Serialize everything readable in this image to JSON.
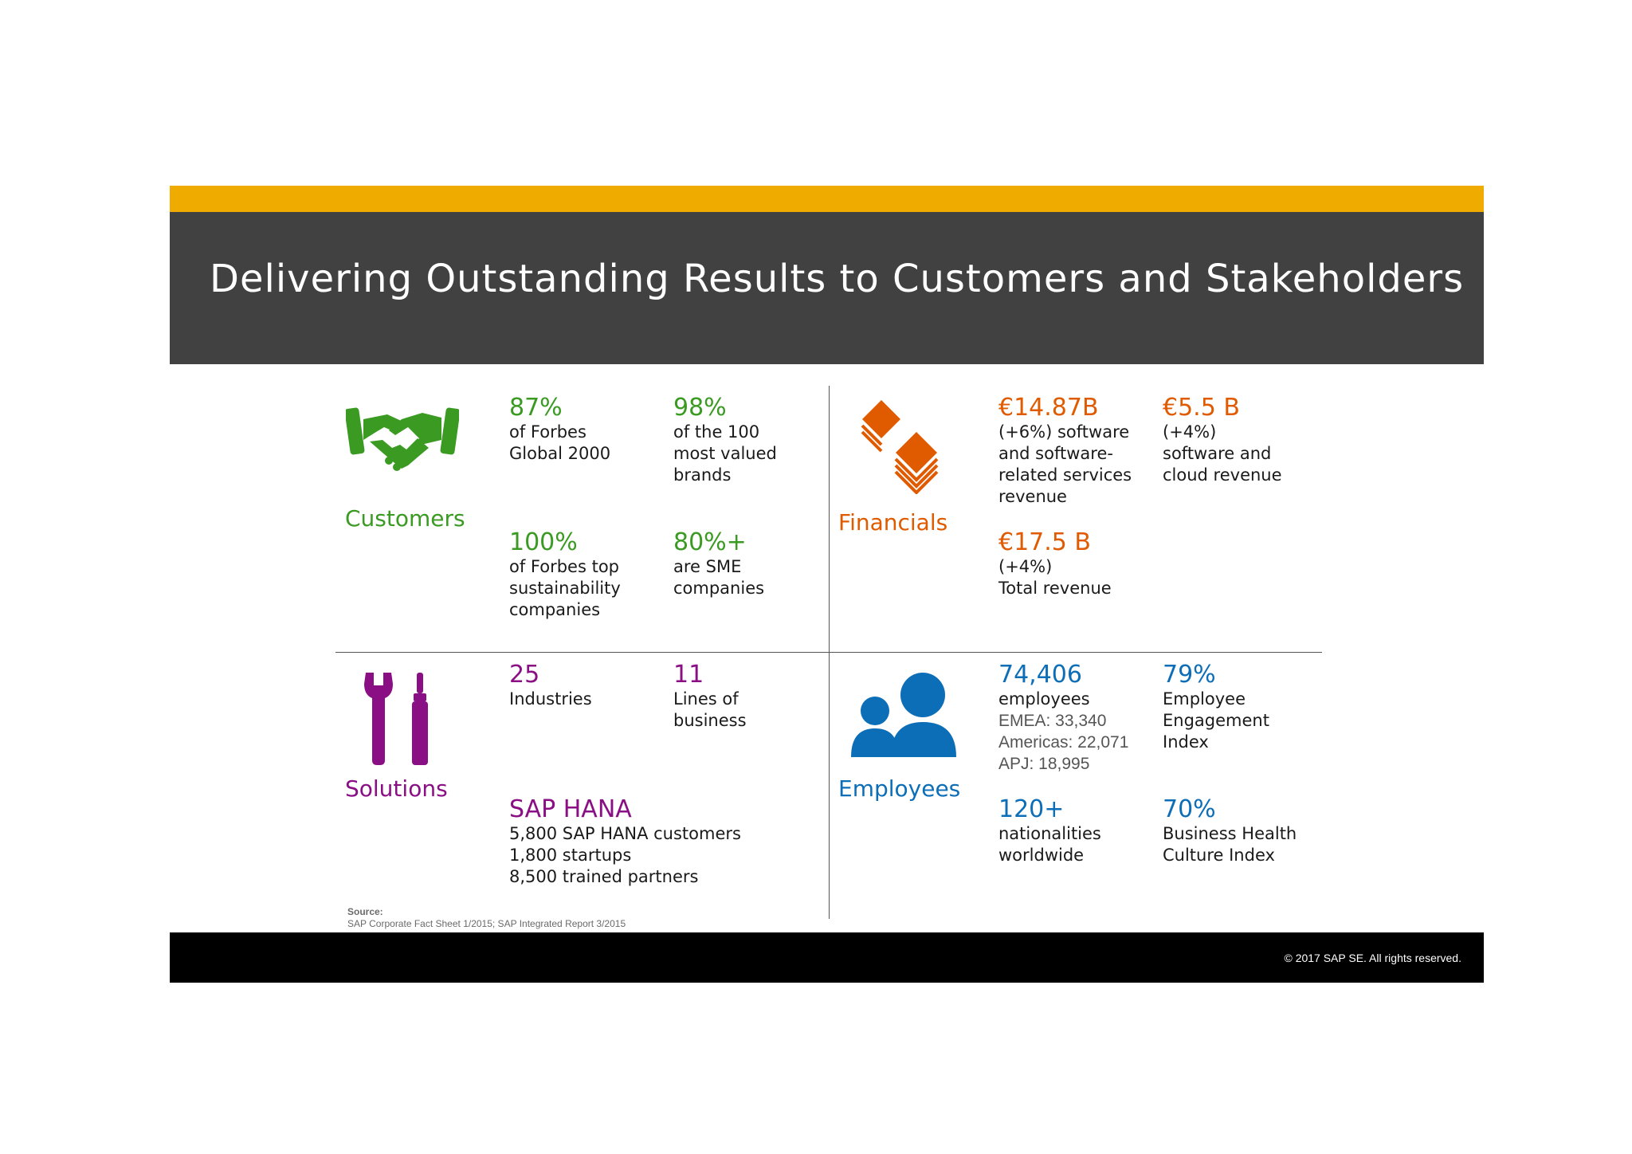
{
  "header": {
    "title": "Delivering Outstanding Results to Customers and Stakeholders"
  },
  "footer": {
    "copyright": "© 2017 SAP SE. All rights reserved."
  },
  "colors": {
    "gold": "#F0AB00",
    "title_bg": "#414141",
    "green": "#3A9A22",
    "orange": "#E05A00",
    "purple": "#8B0F84",
    "blue": "#0D6EB8"
  },
  "customers": {
    "label": "Customers",
    "icon": "handshake-icon",
    "stats": [
      {
        "value": "87%",
        "desc": "of Forbes\nGlobal 2000"
      },
      {
        "value": "98%",
        "desc": "of the 100\nmost valued\nbrands"
      },
      {
        "value": "100%",
        "desc": "of Forbes top\nsustainability\ncompanies"
      },
      {
        "value": "80%+",
        "desc": "are SME\ncompanies"
      }
    ]
  },
  "financials": {
    "label": "Financials",
    "icon": "stacked-cards-icon",
    "stats": [
      {
        "value": "€14.87B",
        "desc": "(+6%) software\nand software-\nrelated services\nrevenue"
      },
      {
        "value": "€5.5 B",
        "desc": "(+4%)\nsoftware and\ncloud revenue"
      },
      {
        "value": "€17.5 B",
        "desc": "(+4%)\nTotal revenue"
      }
    ]
  },
  "solutions": {
    "label": "Solutions",
    "icon": "wrench-screwdriver-icon",
    "stats": [
      {
        "value": "25",
        "desc": "Industries"
      },
      {
        "value": "11",
        "desc": "Lines of\nbusiness"
      },
      {
        "value": "SAP HANA",
        "desc": "5,800 SAP HANA customers\n1,800 startups\n8,500 trained partners"
      }
    ]
  },
  "employees": {
    "label": "Employees",
    "icon": "people-icon",
    "stats": [
      {
        "value": "74,406",
        "desc": "employees",
        "sub": [
          "EMEA: 33,340",
          "Americas: 22,071",
          "APJ: 18,995"
        ]
      },
      {
        "value": "79%",
        "desc": "Employee\nEngagement\nIndex"
      },
      {
        "value": "120+",
        "desc": "nationalities\nworldwide"
      },
      {
        "value": "70%",
        "desc": "Business Health\nCulture Index"
      }
    ]
  },
  "source": {
    "label": "Source:",
    "text": "SAP Corporate Fact Sheet 1/2015; SAP Integrated Report 3/2015"
  }
}
